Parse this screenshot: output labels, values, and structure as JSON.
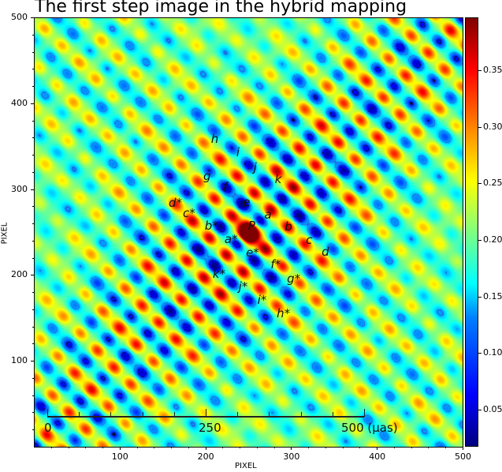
{
  "chart_data": {
    "type": "heatmap",
    "title": "The first step image in the hybrid mapping",
    "xlabel": "PIXEL",
    "ylabel": "PIXEL",
    "xlim": [
      0,
      500
    ],
    "ylim": [
      0,
      500
    ],
    "xticks": [
      "100",
      "200",
      "300",
      "400",
      "500"
    ],
    "yticks": [
      "100",
      "200",
      "300",
      "400",
      "500"
    ],
    "xtick_values": [
      100,
      200,
      300,
      400,
      500
    ],
    "ytick_values": [
      100,
      200,
      300,
      400,
      500
    ],
    "colormap": "jet",
    "colorbar": {
      "range": [
        0.017,
        0.397
      ],
      "ticks": [
        "0.05",
        "0.10",
        "0.15",
        "0.20",
        "0.25",
        "0.30",
        "0.35"
      ],
      "tick_values": [
        0.05,
        0.1,
        0.15,
        0.2,
        0.25,
        0.3,
        0.35
      ]
    },
    "annotations": [
      {
        "text": "h",
        "x": 211,
        "y": 358
      },
      {
        "text": "i",
        "x": 238,
        "y": 343
      },
      {
        "text": "j",
        "x": 258,
        "y": 325
      },
      {
        "text": "k",
        "x": 285,
        "y": 312
      },
      {
        "text": "g",
        "x": 202,
        "y": 315
      },
      {
        "text": "f",
        "x": 223,
        "y": 302
      },
      {
        "text": "e",
        "x": 248,
        "y": 285
      },
      {
        "text": "a",
        "x": 273,
        "y": 270
      },
      {
        "text": "P",
        "x": 254,
        "y": 257
      },
      {
        "text": "b",
        "x": 297,
        "y": 256
      },
      {
        "text": "c",
        "x": 321,
        "y": 241
      },
      {
        "text": "d",
        "x": 340,
        "y": 227
      },
      {
        "text": "d*",
        "x": 165,
        "y": 284
      },
      {
        "text": "c*",
        "x": 181,
        "y": 272
      },
      {
        "text": "b*",
        "x": 207,
        "y": 257
      },
      {
        "text": "a*",
        "x": 230,
        "y": 242
      },
      {
        "text": "e*",
        "x": 255,
        "y": 226
      },
      {
        "text": "f*",
        "x": 282,
        "y": 212
      },
      {
        "text": "g*",
        "x": 303,
        "y": 196
      },
      {
        "text": "k*",
        "x": 216,
        "y": 201
      },
      {
        "text": "j*",
        "x": 244,
        "y": 187
      },
      {
        "text": "i*",
        "x": 266,
        "y": 171
      },
      {
        "text": "h*",
        "x": 291,
        "y": 155
      }
    ],
    "scale_bar": {
      "labels": [
        "0",
        "250",
        "500 (μas)"
      ],
      "values_uas": [
        0,
        250,
        500
      ],
      "minor_divisions": 5
    }
  }
}
